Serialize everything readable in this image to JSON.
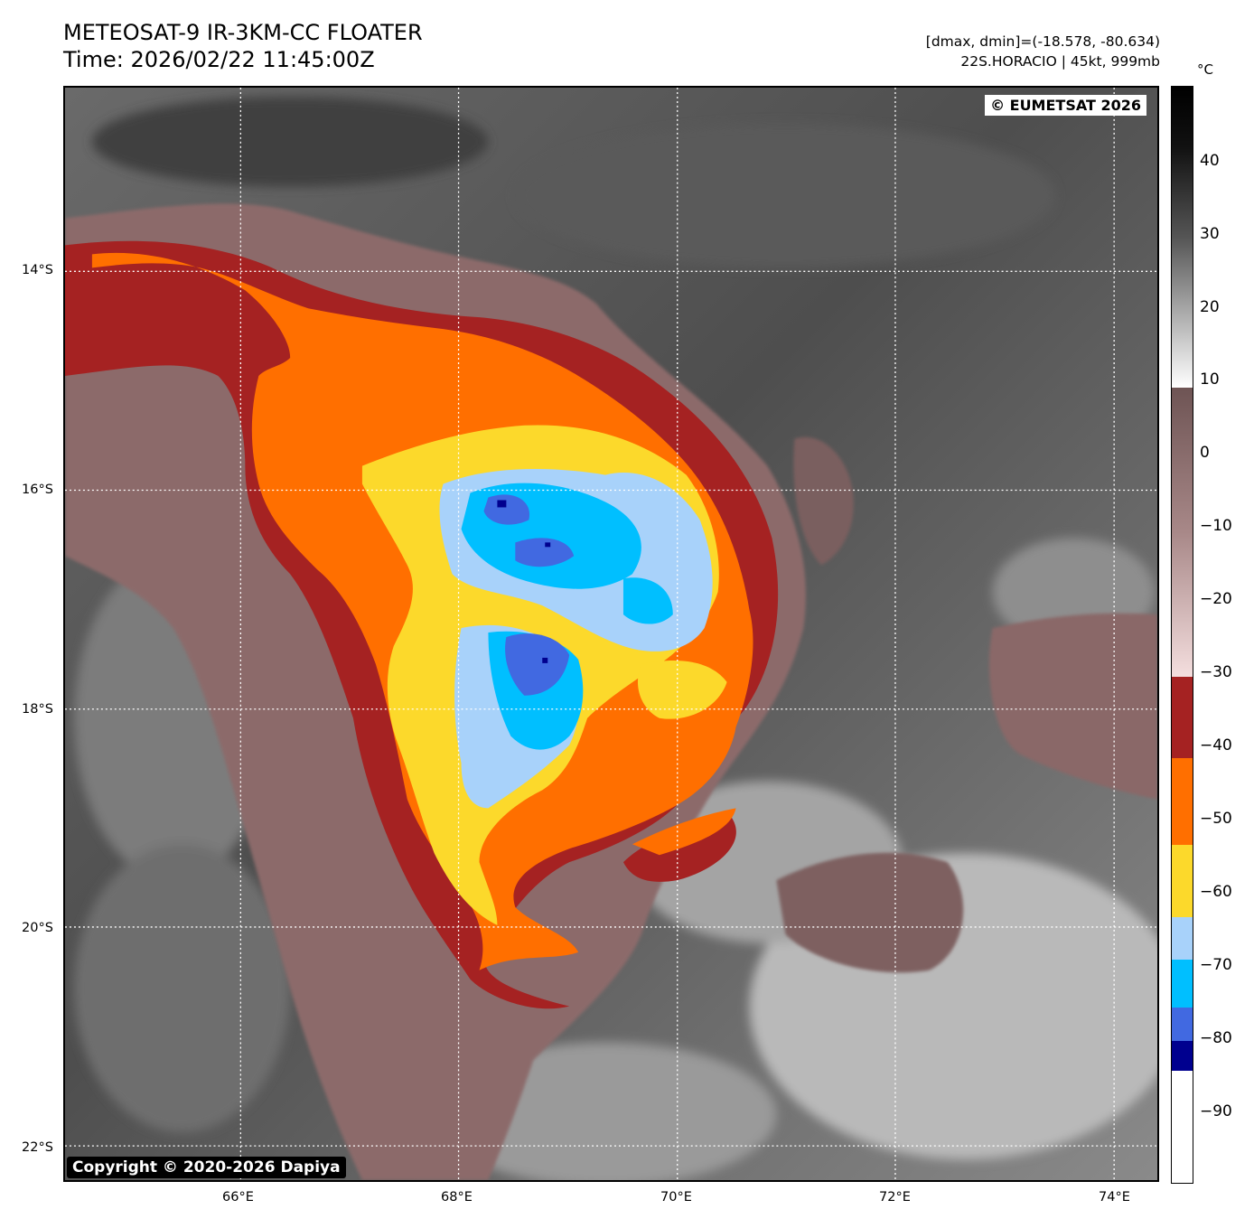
{
  "header": {
    "title": "METEOSAT-9 IR-3KM-CC FLOATER",
    "time": "Time: 2026/02/22 11:45:00Z",
    "dmax_dmin": "[dmax, dmin]=(-18.578, -80.634)",
    "storm": "22S.HORACIO | 45kt, 999mb"
  },
  "map": {
    "lat_labels": [
      "14°S",
      "16°S",
      "18°S",
      "20°S",
      "22°S"
    ],
    "lon_labels": [
      "66°E",
      "68°E",
      "70°E",
      "72°E",
      "74°E"
    ],
    "watermark": "© EUMETSAT 2026",
    "copyright": "Copyright © 2020-2026 Dapiya"
  },
  "colorbar": {
    "unit": "°C",
    "ticks": [
      "40",
      "30",
      "20",
      "10",
      "0",
      "−10",
      "−20",
      "−30",
      "−40",
      "−50",
      "−60",
      "−70",
      "−80",
      "−90"
    ],
    "colors": {
      "red": "#a52222",
      "orange": "#ff6f00",
      "yellow": "#fcd92b",
      "light_blue": "#a8d2fa",
      "cyan": "#00bfff",
      "royal_blue": "#4169e1",
      "navy": "#00008f",
      "pink_brown": "#8a6464",
      "gray": "#5c5c5c"
    }
  }
}
